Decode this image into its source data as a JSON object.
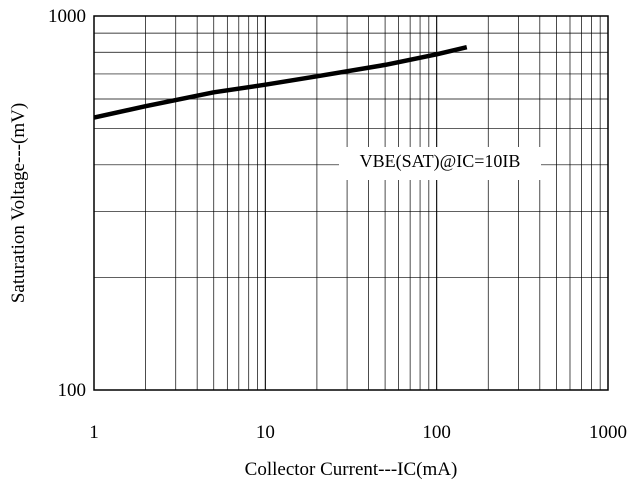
{
  "chart_data": {
    "type": "line",
    "xscale": "log",
    "yscale": "log",
    "xlim": [
      1,
      1000
    ],
    "ylim": [
      100,
      1000
    ],
    "grid": true,
    "xlabel": "Collector Current---IC(mA)",
    "ylabel": "Saturation Voltage---(mV)",
    "xticks": [
      "1",
      "10",
      "100",
      "1000"
    ],
    "yticks": [
      "100",
      "1000"
    ],
    "annotation": "VBE(SAT)@IC=10IB",
    "series": [
      {
        "x": [
          1,
          2,
          5,
          10,
          20,
          50,
          100,
          150
        ],
        "y": [
          535,
          574,
          625,
          655,
          690,
          740,
          790,
          825
        ]
      }
    ]
  }
}
